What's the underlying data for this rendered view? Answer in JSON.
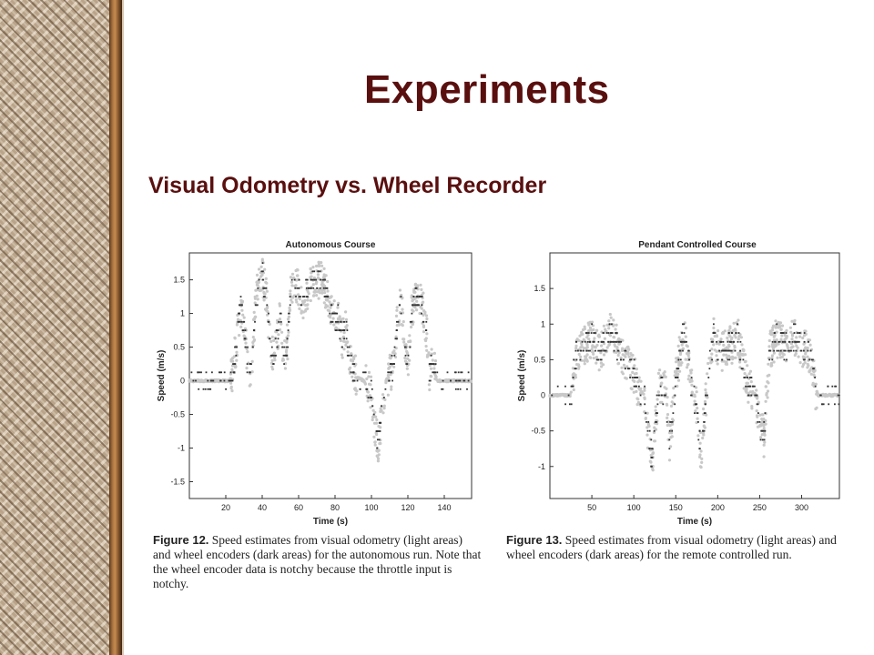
{
  "slide": {
    "title": "Experiments",
    "subtitle": "Visual Odometry vs. Wheel Recorder"
  },
  "colors": {
    "title": "#5a0f0f",
    "visual_odometry_points": "#c8c8c8",
    "wheel_encoder_points": "#333333"
  },
  "captions": [
    {
      "label": "Figure 12.",
      "text": "Speed estimates from visual odometry (light areas) and wheel encoders (dark areas) for the autonomous run. Note that the wheel encoder data is notchy because the throttle input is notchy."
    },
    {
      "label": "Figure 13.",
      "text": "Speed estimates from visual odometry (light areas) and wheel encoders (dark areas) for the remote controlled run."
    }
  ],
  "chart_data": [
    {
      "type": "scatter",
      "title": "Autonomous Course",
      "xlabel": "Time (s)",
      "ylabel": "Speed (m/s)",
      "xlim": [
        0,
        155
      ],
      "ylim": [
        -1.75,
        1.9
      ],
      "xticks": [
        20,
        40,
        60,
        80,
        100,
        120,
        140
      ],
      "yticks": [
        -1.5,
        -1,
        -0.5,
        0,
        0.5,
        1,
        1.5
      ],
      "ytick_labels": [
        "-1.5",
        "-1",
        "-0.5",
        "0",
        "0.5",
        "1",
        "1.5"
      ],
      "profile": [
        [
          0,
          0
        ],
        [
          22,
          0
        ],
        [
          24,
          0.15
        ],
        [
          26,
          0.6
        ],
        [
          28,
          1.1
        ],
        [
          30,
          0.8
        ],
        [
          32,
          0.3
        ],
        [
          34,
          0.1
        ],
        [
          36,
          1.0
        ],
        [
          38,
          1.5
        ],
        [
          40,
          1.6
        ],
        [
          42,
          1.3
        ],
        [
          44,
          0.7
        ],
        [
          46,
          0.3
        ],
        [
          48,
          0.6
        ],
        [
          50,
          1.0
        ],
        [
          52,
          0.3
        ],
        [
          54,
          0.6
        ],
        [
          56,
          1.4
        ],
        [
          60,
          1.4
        ],
        [
          62,
          1.1
        ],
        [
          64,
          1.3
        ],
        [
          68,
          1.5
        ],
        [
          72,
          1.5
        ],
        [
          76,
          1.3
        ],
        [
          78,
          1.0
        ],
        [
          82,
          0.9
        ],
        [
          84,
          0.6
        ],
        [
          86,
          0.8
        ],
        [
          88,
          0.3
        ],
        [
          90,
          0.2
        ],
        [
          92,
          0.05
        ],
        [
          96,
          0
        ],
        [
          100,
          -0.2
        ],
        [
          102,
          -0.7
        ],
        [
          104,
          -0.95
        ],
        [
          106,
          -0.4
        ],
        [
          108,
          0
        ],
        [
          112,
          0.2
        ],
        [
          114,
          0.8
        ],
        [
          116,
          1.2
        ],
        [
          118,
          0.7
        ],
        [
          120,
          0.2
        ],
        [
          122,
          1.0
        ],
        [
          124,
          1.3
        ],
        [
          128,
          1.1
        ],
        [
          130,
          0.8
        ],
        [
          132,
          0.1
        ],
        [
          134,
          0.3
        ],
        [
          136,
          0
        ],
        [
          155,
          0
        ]
      ]
    },
    {
      "type": "scatter",
      "title": "Pendant Controlled Course",
      "xlabel": "Time (s)",
      "ylabel": "Speed (m/s)",
      "xlim": [
        0,
        345
      ],
      "ylim": [
        -1.45,
        2.0
      ],
      "xticks": [
        50,
        100,
        150,
        200,
        250,
        300
      ],
      "yticks": [
        -1,
        -0.5,
        0,
        0.5,
        1,
        1.5
      ],
      "ytick_labels": [
        "-1",
        "-0.5",
        "0",
        "0.5",
        "1",
        "1.5"
      ],
      "profile": [
        [
          0,
          0
        ],
        [
          25,
          0
        ],
        [
          28,
          0.3
        ],
        [
          32,
          0.6
        ],
        [
          40,
          0.7
        ],
        [
          50,
          0.8
        ],
        [
          60,
          0.6
        ],
        [
          70,
          0.9
        ],
        [
          80,
          0.7
        ],
        [
          90,
          0.5
        ],
        [
          100,
          0.3
        ],
        [
          105,
          0.1
        ],
        [
          112,
          0
        ],
        [
          118,
          -0.6
        ],
        [
          122,
          -0.9
        ],
        [
          126,
          -0.3
        ],
        [
          130,
          0.1
        ],
        [
          138,
          0.1
        ],
        [
          142,
          -0.7
        ],
        [
          146,
          -0.3
        ],
        [
          150,
          0.2
        ],
        [
          155,
          0.6
        ],
        [
          160,
          0.9
        ],
        [
          165,
          0.5
        ],
        [
          170,
          0.0
        ],
        [
          175,
          -0.2
        ],
        [
          180,
          -0.8
        ],
        [
          185,
          -0.2
        ],
        [
          190,
          0.4
        ],
        [
          195,
          0.8
        ],
        [
          205,
          0.6
        ],
        [
          215,
          0.7
        ],
        [
          225,
          0.8
        ],
        [
          230,
          0.4
        ],
        [
          238,
          0.1
        ],
        [
          245,
          0.0
        ],
        [
          250,
          -0.4
        ],
        [
          255,
          -0.6
        ],
        [
          258,
          0.0
        ],
        [
          262,
          0.6
        ],
        [
          270,
          0.8
        ],
        [
          280,
          0.7
        ],
        [
          290,
          0.8
        ],
        [
          300,
          0.7
        ],
        [
          308,
          0.6
        ],
        [
          312,
          0.5
        ],
        [
          316,
          0.1
        ],
        [
          320,
          0
        ],
        [
          345,
          0
        ]
      ]
    }
  ]
}
